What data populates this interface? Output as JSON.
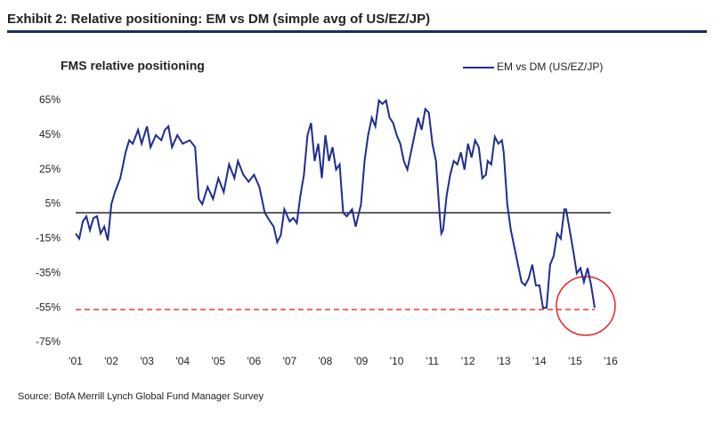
{
  "chart_data": {
    "type": "line",
    "title": "Exhibit 2: Relative positioning: EM vs DM (simple avg of US/EZ/JP)",
    "subtitle": "FMS relative positioning",
    "source": "Source: BofA Merrill Lynch Global Fund Manager Survey",
    "legend": "top-right",
    "x": [
      2001.0,
      2001.1,
      2001.2,
      2001.3,
      2001.4,
      2001.5,
      2001.6,
      2001.7,
      2001.8,
      2001.9,
      2002.0,
      2002.1,
      2002.25,
      2002.4,
      2002.5,
      2002.6,
      2002.75,
      2002.85,
      2003.0,
      2003.1,
      2003.25,
      2003.4,
      2003.5,
      2003.6,
      2003.7,
      2003.85,
      2004.0,
      2004.2,
      2004.35,
      2004.45,
      2004.55,
      2004.7,
      2004.85,
      2005.0,
      2005.15,
      2005.3,
      2005.45,
      2005.55,
      2005.7,
      2005.85,
      2006.0,
      2006.15,
      2006.3,
      2006.45,
      2006.55,
      2006.65,
      2006.75,
      2006.85,
      2007.0,
      2007.1,
      2007.2,
      2007.3,
      2007.4,
      2007.5,
      2007.6,
      2007.7,
      2007.8,
      2007.9,
      2008.0,
      2008.1,
      2008.2,
      2008.3,
      2008.4,
      2008.5,
      2008.6,
      2008.75,
      2008.85,
      2009.0,
      2009.1,
      2009.2,
      2009.3,
      2009.4,
      2009.5,
      2009.6,
      2009.7,
      2009.8,
      2009.9,
      2010.0,
      2010.1,
      2010.2,
      2010.3,
      2010.4,
      2010.5,
      2010.6,
      2010.7,
      2010.8,
      2010.9,
      2011.0,
      2011.1,
      2011.2,
      2011.25,
      2011.3,
      2011.4,
      2011.5,
      2011.6,
      2011.7,
      2011.8,
      2011.9,
      2012.0,
      2012.1,
      2012.2,
      2012.3,
      2012.4,
      2012.5,
      2012.55,
      2012.65,
      2012.75,
      2012.85,
      2012.95,
      2013.0,
      2013.1,
      2013.2,
      2013.3,
      2013.4,
      2013.5,
      2013.6,
      2013.7,
      2013.8,
      2013.9,
      2014.0,
      2014.1,
      2014.2,
      2014.3,
      2014.4,
      2014.5,
      2014.6,
      2014.7,
      2014.75,
      2014.85,
      2014.95,
      2015.05,
      2015.15,
      2015.25,
      2015.35,
      2015.45,
      2015.55
    ],
    "series": [
      {
        "name": "EM vs DM (US/EZ/JP)",
        "color": "#1f2d8f",
        "values": [
          -12,
          -15,
          -5,
          -2,
          -10,
          -3,
          -2,
          -12,
          -8,
          -16,
          5,
          12,
          20,
          35,
          42,
          40,
          48,
          40,
          50,
          38,
          45,
          42,
          48,
          50,
          38,
          45,
          40,
          42,
          38,
          8,
          5,
          15,
          8,
          20,
          12,
          28,
          20,
          30,
          22,
          18,
          22,
          15,
          0,
          -5,
          -8,
          -17,
          -13,
          2,
          -5,
          -3,
          -6,
          10,
          22,
          45,
          52,
          30,
          40,
          20,
          45,
          30,
          38,
          25,
          28,
          0,
          -2,
          2,
          -8,
          5,
          30,
          45,
          55,
          50,
          65,
          63,
          65,
          55,
          52,
          45,
          40,
          30,
          25,
          35,
          45,
          55,
          48,
          60,
          58,
          40,
          30,
          0,
          -12,
          -10,
          10,
          22,
          30,
          28,
          35,
          25,
          40,
          32,
          42,
          38,
          20,
          22,
          30,
          28,
          44,
          40,
          42,
          35,
          5,
          -10,
          -20,
          -30,
          -40,
          -42,
          -38,
          -30,
          -42,
          -42,
          -55,
          -55,
          -30,
          -25,
          -12,
          -15,
          2,
          2,
          -10,
          -22,
          -35,
          -32,
          -40,
          -32,
          -42,
          -55
        ]
      }
    ],
    "xlim": [
      2001,
      2016
    ],
    "xticks": [
      {
        "value": 2001,
        "label": "'01"
      },
      {
        "value": 2002,
        "label": "'02"
      },
      {
        "value": 2003,
        "label": "'03"
      },
      {
        "value": 2004,
        "label": "'04"
      },
      {
        "value": 2005,
        "label": "'05"
      },
      {
        "value": 2006,
        "label": "'06"
      },
      {
        "value": 2007,
        "label": "'07"
      },
      {
        "value": 2008,
        "label": "'08"
      },
      {
        "value": 2009,
        "label": "'09"
      },
      {
        "value": 2010,
        "label": "'10"
      },
      {
        "value": 2011,
        "label": "'11"
      },
      {
        "value": 2012,
        "label": "'12"
      },
      {
        "value": 2013,
        "label": "'13"
      },
      {
        "value": 2014,
        "label": "'14"
      },
      {
        "value": 2015,
        "label": "'15"
      },
      {
        "value": 2016,
        "label": "'16"
      }
    ],
    "ylim": [
      -75,
      65
    ],
    "yticks": [
      {
        "value": -75,
        "label": "-75%"
      },
      {
        "value": -55,
        "label": "-55%"
      },
      {
        "value": -35,
        "label": "-35%"
      },
      {
        "value": -15,
        "label": "-15%"
      },
      {
        "value": 5,
        "label": "5%"
      },
      {
        "value": 25,
        "label": "25%"
      },
      {
        "value": 45,
        "label": "45%"
      },
      {
        "value": 65,
        "label": "65%"
      }
    ],
    "reference_lines": [
      {
        "value": 0,
        "color": "#000000",
        "dashed": false
      },
      {
        "value": -56,
        "color": "#e8262a",
        "dashed": true
      }
    ]
  }
}
